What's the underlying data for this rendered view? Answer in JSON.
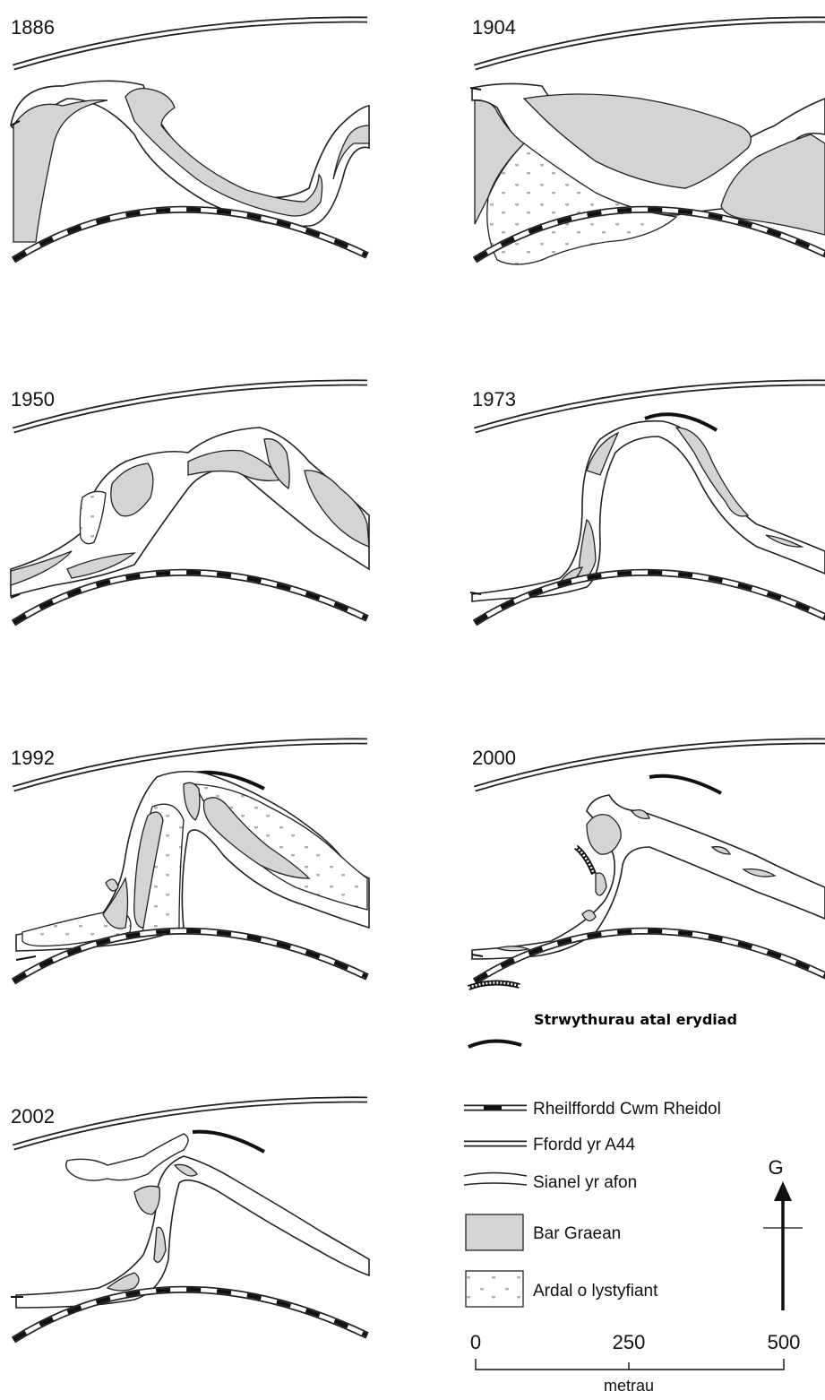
{
  "panels": [
    {
      "year": "1886"
    },
    {
      "year": "1904"
    },
    {
      "year": "1950"
    },
    {
      "year": "1973"
    },
    {
      "year": "1992"
    },
    {
      "year": "2000"
    },
    {
      "year": "2002"
    }
  ],
  "legend": {
    "erosion": "Strwythurau atal erydiad",
    "railway": "Rheilffordd Cwm Rheidol",
    "road": "Ffordd yr A44",
    "channel": "Sianel yr afon",
    "gravel": "Bar Graean",
    "vegetation": "Ardal o lystyfiant"
  },
  "north": "G",
  "scale": {
    "ticks": [
      "0",
      "250",
      "500"
    ],
    "unit": "metrau"
  },
  "colors": {
    "gravel": "#d4d4d4",
    "ink": "#111111"
  }
}
